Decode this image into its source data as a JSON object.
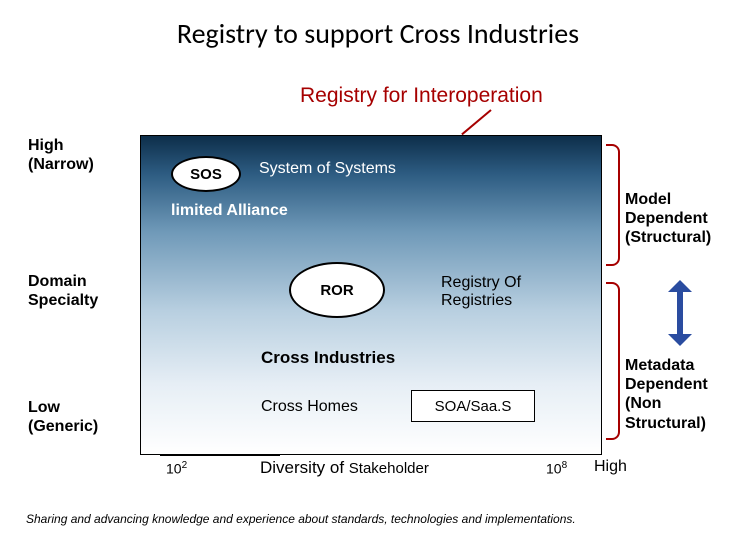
{
  "title": "Registry to support Cross Industries",
  "subtitle": "Registry for Interoperation",
  "subtitle_color": "#a60000",
  "y_axis": {
    "top": "High\n(Narrow)",
    "mid": "Domain\nSpecialty",
    "bot": "Low\n(Generic)"
  },
  "x_axis": {
    "low_tick": "10",
    "low_exp": "2",
    "high_tick": "10",
    "high_exp": "8",
    "high_label": "High",
    "mid_a": "Diversity of ",
    "mid_b": "Stakeholder"
  },
  "diagram": {
    "type": "infographic",
    "background_gradient": [
      "#0d2e4a",
      "#2d5c82",
      "#6f99b8",
      "#b8cfe0",
      "#e6eef5",
      "#ffffff"
    ],
    "border_color": "#000000",
    "sos": {
      "label": "SOS",
      "full": "System of Systems"
    },
    "alliance": "limited Alliance",
    "ror": {
      "label": "ROR",
      "full": "Registry Of\nRegistries"
    },
    "cross_ind": "Cross Industries",
    "cross_homes": "Cross Homes",
    "soa": "SOA/Saa.S"
  },
  "right": {
    "top": "Model\nDependent\n(Structural)",
    "bot": "Metadata\nDependent\n(Non\nStructural)"
  },
  "bracket_color": "#a60000",
  "arrow_color": "#2a4ca0",
  "footer": "Sharing and advancing knowledge and experience about standards, technologies and implementations."
}
